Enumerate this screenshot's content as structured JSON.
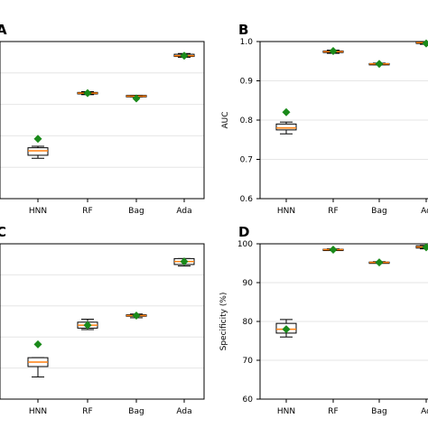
{
  "colors": {
    "box_edge": "#000000",
    "median": "#ff7f0e",
    "mean_marker": "#1a8a1a",
    "grid": "#e6e6e6"
  },
  "chart_data": [
    {
      "panel": "A",
      "type": "box",
      "categories": [
        "HNN",
        "RF",
        "Bag",
        "Ada"
      ],
      "yticks": [
        "",
        "",
        "",
        "",
        "",
        ""
      ],
      "ylabel": "",
      "ylim": [
        0,
        1.05
      ],
      "boxes": [
        {
          "q1": 0.29,
          "median": 0.32,
          "q3": 0.34,
          "whislo": 0.27,
          "whishi": 0.35,
          "mean": 0.4
        },
        {
          "q1": 0.7,
          "median": 0.705,
          "q3": 0.71,
          "whislo": 0.695,
          "whishi": 0.715,
          "mean": 0.705
        },
        {
          "q1": 0.68,
          "median": 0.685,
          "q3": 0.69,
          "whislo": 0.68,
          "whishi": 0.69,
          "mean": 0.67
        },
        {
          "q1": 0.95,
          "median": 0.955,
          "q3": 0.965,
          "whislo": 0.945,
          "whishi": 0.97,
          "mean": 0.955
        }
      ]
    },
    {
      "panel": "B",
      "type": "box",
      "categories": [
        "HNN",
        "RF",
        "Bag",
        "Ad"
      ],
      "yticks": [
        "0.6",
        "0.7",
        "0.8",
        "0.9",
        "1.0"
      ],
      "ylabel": "AUC",
      "ylim": [
        0.6,
        1.0
      ],
      "boxes": [
        {
          "q1": 0.775,
          "median": 0.78,
          "q3": 0.79,
          "whislo": 0.765,
          "whishi": 0.795,
          "mean": 0.82
        },
        {
          "q1": 0.972,
          "median": 0.974,
          "q3": 0.976,
          "whislo": 0.97,
          "whishi": 0.978,
          "mean": 0.976
        },
        {
          "q1": 0.942,
          "median": 0.943,
          "q3": 0.944,
          "whislo": 0.941,
          "whishi": 0.945,
          "mean": 0.943
        },
        {
          "q1": 0.995,
          "median": 0.997,
          "q3": 0.999,
          "whislo": 0.993,
          "whishi": 1.0,
          "mean": 0.995
        }
      ]
    },
    {
      "panel": "C",
      "type": "box",
      "categories": [
        "HNN",
        "RF",
        "Bag",
        "Ada"
      ],
      "yticks": [
        "",
        "",
        "",
        "",
        "",
        ""
      ],
      "ylabel": "",
      "ylim": [
        0,
        1.05
      ],
      "boxes": [
        {
          "q1": 0.22,
          "median": 0.25,
          "q3": 0.28,
          "whislo": 0.15,
          "whishi": 0.28,
          "mean": 0.37
        },
        {
          "q1": 0.48,
          "median": 0.5,
          "q3": 0.52,
          "whislo": 0.47,
          "whishi": 0.54,
          "mean": 0.5
        },
        {
          "q1": 0.56,
          "median": 0.565,
          "q3": 0.57,
          "whislo": 0.55,
          "whishi": 0.575,
          "mean": 0.565
        },
        {
          "q1": 0.91,
          "median": 0.93,
          "q3": 0.95,
          "whislo": 0.9,
          "whishi": 0.95,
          "mean": 0.93
        }
      ]
    },
    {
      "panel": "D",
      "type": "box",
      "categories": [
        "HNN",
        "RF",
        "Bag",
        "Ad"
      ],
      "yticks": [
        "60",
        "70",
        "80",
        "90",
        "100"
      ],
      "ylabel": "Specificity (%)",
      "ylim": [
        60,
        100
      ],
      "boxes": [
        {
          "q1": 77,
          "median": 78,
          "q3": 79.5,
          "whislo": 76,
          "whishi": 80.5,
          "mean": 78
        },
        {
          "q1": 98.4,
          "median": 98.5,
          "q3": 98.6,
          "whislo": 98.3,
          "whishi": 98.7,
          "mean": 98.5
        },
        {
          "q1": 95.1,
          "median": 95.2,
          "q3": 95.3,
          "whislo": 95.0,
          "whishi": 95.4,
          "mean": 95.2
        },
        {
          "q1": 98.9,
          "median": 99.2,
          "q3": 99.5,
          "whislo": 98.7,
          "whishi": 99.6,
          "mean": 99.1
        }
      ]
    }
  ]
}
